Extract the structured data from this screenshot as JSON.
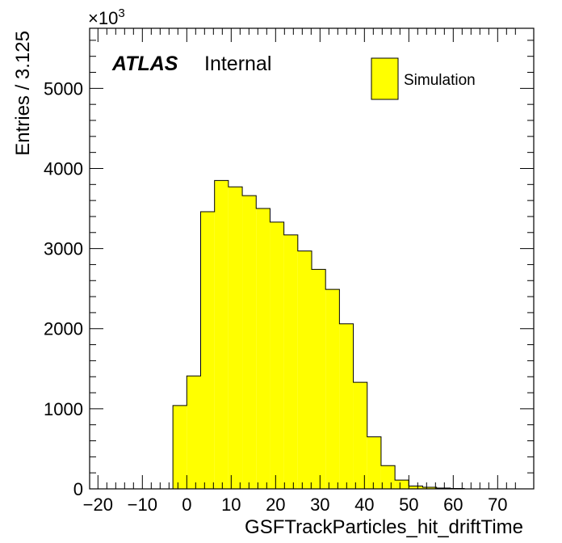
{
  "chart_data": {
    "type": "bar",
    "histogram": true,
    "xlabel": "GSFTrackParticles_hit_driftTime",
    "ylabel": "Entries / 3.125",
    "y_multiplier_label": "×10",
    "y_multiplier_exponent": "3",
    "xlim": [
      -21.875,
      78.125
    ],
    "ylim": [
      0,
      5750
    ],
    "grid": false,
    "bin_width": 3.125,
    "bin_edges": [
      -3.125,
      0,
      3.125,
      6.25,
      9.375,
      12.5,
      15.625,
      18.75,
      21.875,
      25,
      28.125,
      31.25,
      34.375,
      37.5,
      40.625,
      43.75,
      46.875,
      50,
      53.125,
      56.25,
      59.375,
      62.5
    ],
    "series": [
      {
        "name": "Simulation",
        "color": "#ffff00",
        "values": [
          1040,
          1410,
          3460,
          3850,
          3770,
          3660,
          3500,
          3330,
          3170,
          2970,
          2740,
          2490,
          2060,
          1330,
          650,
          290,
          110,
          35,
          20,
          10,
          5
        ]
      }
    ],
    "xticks": [
      "−20",
      "−10",
      "0",
      "10",
      "20",
      "30",
      "40",
      "50",
      "60",
      "70"
    ],
    "xtick_values": [
      -20,
      -10,
      0,
      10,
      20,
      30,
      40,
      50,
      60,
      70
    ],
    "yticks": [
      "0",
      "1000",
      "2000",
      "3000",
      "4000",
      "5000"
    ],
    "ytick_values": [
      0,
      1000,
      2000,
      3000,
      4000,
      5000
    ],
    "annotations": {
      "atlas": "ATLAS",
      "status": "Internal"
    },
    "legend": {
      "placement": "top-right",
      "entries": [
        "Simulation"
      ]
    }
  }
}
